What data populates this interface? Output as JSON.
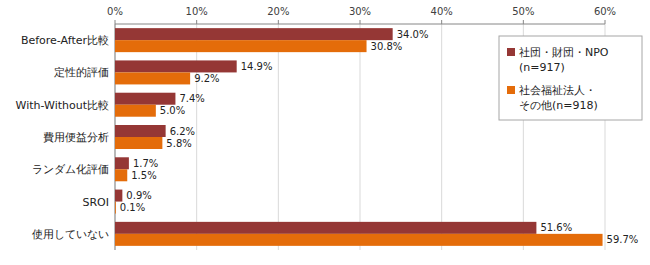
{
  "chart_data": {
    "type": "bar",
    "orientation": "horizontal",
    "categories": [
      "Before-After比較",
      "定性的評価",
      "With-Without比較",
      "費用便益分析",
      "ランダム化評価",
      "SROI",
      "使用していない"
    ],
    "series": [
      {
        "name": "社団・財団・NPO\n(n=917)",
        "color": "#953735",
        "values": [
          34.0,
          14.9,
          7.4,
          6.2,
          1.7,
          0.9,
          51.6
        ],
        "value_labels": [
          "34.0%",
          "14.9%",
          "7.4%",
          "6.2%",
          "1.7%",
          "0.9%",
          "51.6%"
        ]
      },
      {
        "name": "社会福祉法人・\nその他(n=918)",
        "color": "#e46c0a",
        "values": [
          30.8,
          9.2,
          5.0,
          5.8,
          1.5,
          0.1,
          59.7
        ],
        "value_labels": [
          "30.8%",
          "9.2%",
          "5.0%",
          "5.8%",
          "1.5%",
          "0.1%",
          "59.7%"
        ]
      }
    ],
    "xlim": [
      0,
      60
    ],
    "xticks": [
      {
        "value": 0,
        "label": "0%"
      },
      {
        "value": 10,
        "label": "10%"
      },
      {
        "value": 20,
        "label": "20%"
      },
      {
        "value": 30,
        "label": "30%"
      },
      {
        "value": 40,
        "label": "40%"
      },
      {
        "value": 50,
        "label": "50%"
      },
      {
        "value": 60,
        "label": "60%"
      }
    ],
    "grid": true,
    "legend": "upper right",
    "data_labels": true
  }
}
